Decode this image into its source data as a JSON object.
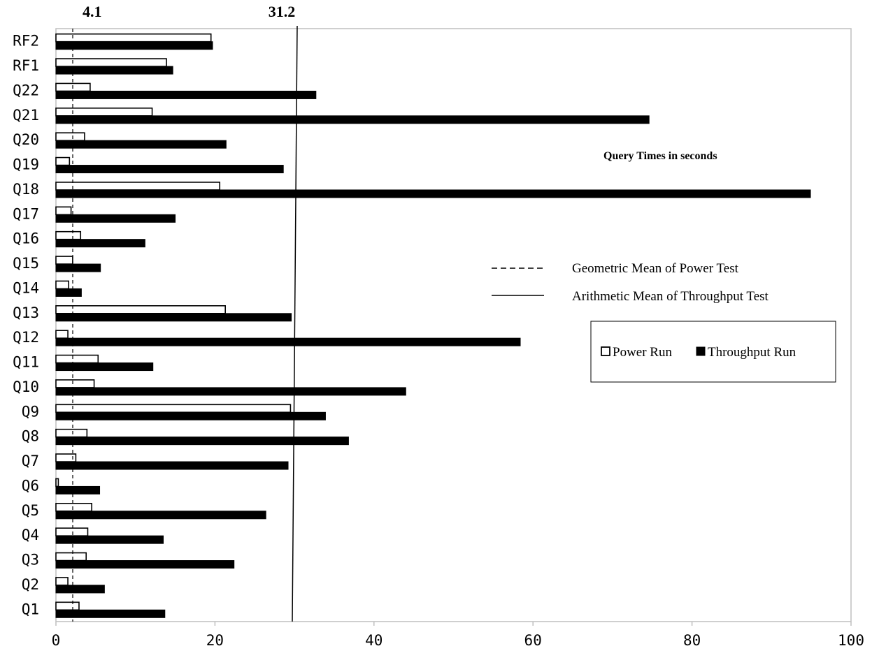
{
  "chart_data": {
    "type": "bar",
    "orientation": "horizontal",
    "title": "",
    "annotation": "Query Times in seconds",
    "categories": [
      "Q1",
      "Q2",
      "Q3",
      "Q4",
      "Q5",
      "Q6",
      "Q7",
      "Q8",
      "Q9",
      "Q10",
      "Q11",
      "Q12",
      "Q13",
      "Q14",
      "Q15",
      "Q16",
      "Q17",
      "Q18",
      "Q19",
      "Q20",
      "Q21",
      "Q22",
      "RF1",
      "RF2"
    ],
    "series": [
      {
        "name": "Power Run",
        "fill": "#ffffff",
        "stroke": "#000000",
        "values": [
          2.9,
          1.5,
          3.8,
          4.0,
          4.5,
          0.3,
          2.5,
          3.9,
          29.5,
          4.8,
          5.3,
          1.5,
          21.3,
          1.6,
          2.1,
          3.1,
          1.9,
          20.6,
          1.7,
          3.6,
          12.1,
          4.3,
          13.9,
          19.5
        ]
      },
      {
        "name": "Throughput Run",
        "fill": "#000000",
        "stroke": "#000000",
        "values": [
          13.7,
          6.1,
          22.4,
          13.5,
          26.4,
          5.5,
          29.2,
          36.8,
          33.9,
          44.0,
          12.2,
          58.4,
          29.6,
          3.2,
          5.6,
          11.2,
          15.0,
          94.9,
          28.6,
          21.4,
          74.6,
          32.7,
          14.7,
          19.7
        ]
      }
    ],
    "reference_lines": [
      {
        "name": "Geometric Mean of Power Test",
        "label": "4.1",
        "style": "dashed"
      },
      {
        "name": "Arithmetic Mean of Throughput Test",
        "label": "31.2",
        "style": "solid"
      }
    ],
    "x_ticks": [
      "0",
      "20",
      "40",
      "60",
      "80",
      "100"
    ],
    "xlim": [
      0,
      100
    ],
    "xlabel": "",
    "ylabel": "",
    "grid": false,
    "legend_position": "right"
  }
}
